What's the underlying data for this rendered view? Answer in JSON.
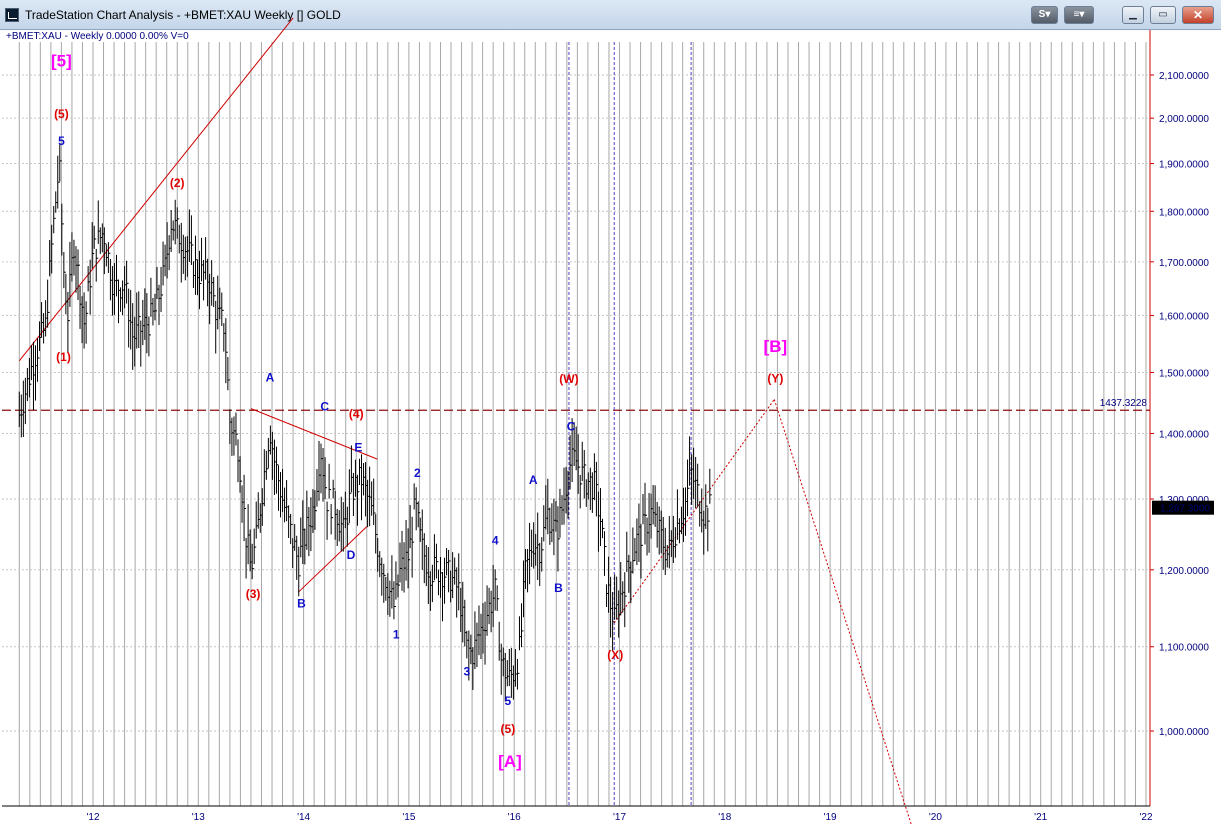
{
  "window": {
    "title": "TradeStation Chart Analysis - +BMET:XAU Weekly [] GOLD",
    "btn_s": "S",
    "btn_s_arrow": "▾",
    "btn_chart": "≡",
    "btn_chart_arrow": "▾",
    "btn_minimize": "▁",
    "btn_maximize": "▭",
    "btn_close": "✕"
  },
  "chart_header": "+BMET:XAU - Weekly  0.0000  0.00%  V=0",
  "colors": {
    "price_bars": "#000000",
    "grid": "#a8a8a8",
    "axis_text": "#00007f",
    "red_labels": "#e00000",
    "blue_labels": "#1010cc",
    "magenta_labels": "#ff00ff",
    "trendlines": "#d00000",
    "time_markers": "#5a3cc4",
    "last_price_bg": "#000000"
  },
  "chart_data": {
    "type": "bar",
    "title": "+BMET:XAU Weekly GOLD",
    "y_scale": "log",
    "ylim": [
      900,
      2250
    ],
    "xlim": [
      2011.3,
      2022.3
    ],
    "y_ticks": [
      1000,
      1100,
      1200,
      1300,
      1400,
      1500,
      1600,
      1700,
      1800,
      1900,
      2000,
      2100
    ],
    "y_tick_labels": [
      "1,000.0000",
      "1,100.0000",
      "1,200.0000",
      "1,300.0000",
      "1,400.0000",
      "1,500.0000",
      "1,600.0000",
      "1,700.0000",
      "1,800.0000",
      "1,900.0000",
      "2,000.0000",
      "2,100.0000"
    ],
    "x_ticks": [
      2012,
      2013,
      2014,
      2015,
      2016,
      2017,
      2018,
      2019,
      2020,
      2021,
      2022
    ],
    "x_tick_labels": [
      "'12",
      "'13",
      "'14",
      "'15",
      "'16",
      "'17",
      "'18",
      "'19",
      "'20",
      "'21",
      "'22"
    ],
    "grid": true,
    "last_price": 1287.3,
    "last_price_label": "1,287.3000",
    "horizontal_level": 1437.3228,
    "horizontal_level_label": "1437.3228",
    "vertical_markers": [
      2016.52,
      2016.95,
      2017.68
    ],
    "price_path": [
      [
        2011.3,
        1430
      ],
      [
        2011.45,
        1530
      ],
      [
        2011.55,
        1580
      ],
      [
        2011.62,
        1760
      ],
      [
        2011.68,
        1900
      ],
      [
        2011.72,
        1690
      ],
      [
        2011.76,
        1600
      ],
      [
        2011.82,
        1740
      ],
      [
        2011.92,
        1580
      ],
      [
        2012.0,
        1720
      ],
      [
        2012.1,
        1760
      ],
      [
        2012.2,
        1650
      ],
      [
        2012.3,
        1660
      ],
      [
        2012.38,
        1560
      ],
      [
        2012.48,
        1580
      ],
      [
        2012.58,
        1600
      ],
      [
        2012.68,
        1680
      ],
      [
        2012.74,
        1780
      ],
      [
        2012.8,
        1760
      ],
      [
        2012.9,
        1720
      ],
      [
        2013.0,
        1680
      ],
      [
        2013.1,
        1670
      ],
      [
        2013.18,
        1600
      ],
      [
        2013.25,
        1580
      ],
      [
        2013.3,
        1420
      ],
      [
        2013.38,
        1380
      ],
      [
        2013.45,
        1250
      ],
      [
        2013.5,
        1200
      ],
      [
        2013.56,
        1250
      ],
      [
        2013.62,
        1330
      ],
      [
        2013.68,
        1410
      ],
      [
        2013.72,
        1360
      ],
      [
        2013.8,
        1300
      ],
      [
        2013.88,
        1250
      ],
      [
        2013.95,
        1210
      ],
      [
        2014.0,
        1240
      ],
      [
        2014.1,
        1290
      ],
      [
        2014.16,
        1380
      ],
      [
        2014.22,
        1300
      ],
      [
        2014.3,
        1290
      ],
      [
        2014.38,
        1250
      ],
      [
        2014.45,
        1310
      ],
      [
        2014.55,
        1330
      ],
      [
        2014.65,
        1280
      ],
      [
        2014.72,
        1220
      ],
      [
        2014.8,
        1180
      ],
      [
        2014.86,
        1150
      ],
      [
        2014.92,
        1200
      ],
      [
        2015.0,
        1220
      ],
      [
        2015.06,
        1290
      ],
      [
        2015.12,
        1230
      ],
      [
        2015.2,
        1200
      ],
      [
        2015.3,
        1200
      ],
      [
        2015.4,
        1190
      ],
      [
        2015.48,
        1170
      ],
      [
        2015.54,
        1100
      ],
      [
        2015.6,
        1090
      ],
      [
        2015.68,
        1120
      ],
      [
        2015.76,
        1150
      ],
      [
        2015.82,
        1170
      ],
      [
        2015.88,
        1080
      ],
      [
        2015.95,
        1060
      ],
      [
        2016.0,
        1070
      ],
      [
        2016.06,
        1100
      ],
      [
        2016.1,
        1190
      ],
      [
        2016.18,
        1240
      ],
      [
        2016.25,
        1230
      ],
      [
        2016.32,
        1280
      ],
      [
        2016.4,
        1250
      ],
      [
        2016.46,
        1290
      ],
      [
        2016.52,
        1350
      ],
      [
        2016.58,
        1360
      ],
      [
        2016.66,
        1330
      ],
      [
        2016.76,
        1320
      ],
      [
        2016.82,
        1270
      ],
      [
        2016.88,
        1180
      ],
      [
        2016.95,
        1130
      ],
      [
        2017.0,
        1160
      ],
      [
        2017.08,
        1200
      ],
      [
        2017.16,
        1240
      ],
      [
        2017.24,
        1260
      ],
      [
        2017.3,
        1280
      ],
      [
        2017.38,
        1250
      ],
      [
        2017.46,
        1220
      ],
      [
        2017.54,
        1260
      ],
      [
        2017.62,
        1290
      ],
      [
        2017.68,
        1340
      ],
      [
        2017.74,
        1310
      ],
      [
        2017.8,
        1280
      ],
      [
        2017.86,
        1287
      ]
    ],
    "projection": [
      [
        2016.95,
        1130
      ],
      [
        2018.47,
        1455
      ],
      [
        2019.77,
        900
      ]
    ],
    "trendlines": [
      [
        [
          2011.3,
          1520
        ],
        [
          2013.9,
          2240
        ]
      ],
      [
        [
          2013.5,
          1440
        ],
        [
          2014.7,
          1360
        ]
      ],
      [
        [
          2013.95,
          1170
        ],
        [
          2014.6,
          1260
        ]
      ]
    ],
    "wave_labels": [
      {
        "text": "[5]",
        "x": 2011.7,
        "y": 2120,
        "color": "magenta",
        "size": "big"
      },
      {
        "text": "(5)",
        "x": 2011.7,
        "y": 2000,
        "color": "red"
      },
      {
        "text": "5",
        "x": 2011.7,
        "y": 1940,
        "color": "blue"
      },
      {
        "text": "(2)",
        "x": 2012.8,
        "y": 1850,
        "color": "red"
      },
      {
        "text": "(1)",
        "x": 2011.72,
        "y": 1520,
        "color": "red"
      },
      {
        "text": "A",
        "x": 2013.68,
        "y": 1485,
        "color": "blue"
      },
      {
        "text": "C",
        "x": 2014.2,
        "y": 1437,
        "color": "blue"
      },
      {
        "text": "(4)",
        "x": 2014.5,
        "y": 1425,
        "color": "red"
      },
      {
        "text": "E",
        "x": 2014.52,
        "y": 1372,
        "color": "blue"
      },
      {
        "text": "2",
        "x": 2015.08,
        "y": 1333,
        "color": "blue"
      },
      {
        "text": "(3)",
        "x": 2013.52,
        "y": 1162,
        "color": "red"
      },
      {
        "text": "B",
        "x": 2013.98,
        "y": 1150,
        "color": "blue"
      },
      {
        "text": "D",
        "x": 2014.45,
        "y": 1215,
        "color": "blue"
      },
      {
        "text": "1",
        "x": 2014.88,
        "y": 1110,
        "color": "blue"
      },
      {
        "text": "4",
        "x": 2015.82,
        "y": 1235,
        "color": "blue"
      },
      {
        "text": "3",
        "x": 2015.55,
        "y": 1065,
        "color": "blue"
      },
      {
        "text": "5",
        "x": 2015.94,
        "y": 1030,
        "color": "blue"
      },
      {
        "text": "(5)",
        "x": 2015.94,
        "y": 998,
        "color": "red"
      },
      {
        "text": "[A]",
        "x": 2015.96,
        "y": 960,
        "color": "magenta",
        "size": "big"
      },
      {
        "text": "A",
        "x": 2016.18,
        "y": 1322,
        "color": "blue"
      },
      {
        "text": "B",
        "x": 2016.42,
        "y": 1170,
        "color": "blue"
      },
      {
        "text": "(W)",
        "x": 2016.52,
        "y": 1482,
        "color": "red"
      },
      {
        "text": "C",
        "x": 2016.54,
        "y": 1405,
        "color": "blue"
      },
      {
        "text": "(X)",
        "x": 2016.96,
        "y": 1085,
        "color": "red"
      },
      {
        "text": "[B]",
        "x": 2018.48,
        "y": 1535,
        "color": "magenta",
        "size": "big"
      },
      {
        "text": "(Y)",
        "x": 2018.48,
        "y": 1483,
        "color": "red"
      }
    ]
  }
}
